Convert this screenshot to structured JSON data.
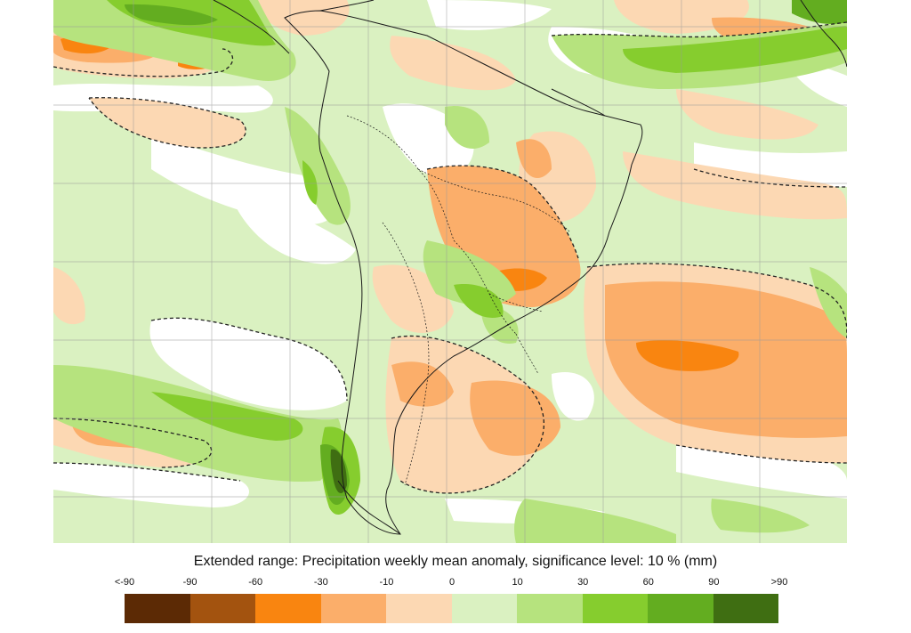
{
  "caption": "Extended range: Precipitation weekly mean anomaly, significance level: 10 % (mm)",
  "legend": {
    "labels": [
      "<-90",
      "-90",
      "-60",
      "-30",
      "-10",
      "0",
      "10",
      "30",
      "60",
      "90",
      ">90"
    ],
    "colors": [
      "#5c2a05",
      "#a3530f",
      "#f98510",
      "#fbae6a",
      "#fcd8b3",
      "#daf1c1",
      "#b6e37e",
      "#86cd2e",
      "#63ad20",
      "#3f6e12"
    ]
  },
  "map": {
    "region": "South America",
    "palette": {
      "background_significant": "#daf1c1",
      "not_significant": "#ffffff",
      "dry_light": "#fcd8b3",
      "dry_mid": "#fbae6a",
      "dry_strong": "#f98510",
      "wet_light": "#b6e37e",
      "wet_mid": "#86cd2e",
      "wet_strong": "#63ad20",
      "wet_extreme": "#3f6e12",
      "coast": "#1a1a1a",
      "grid": "#9a9a9a",
      "contour": "#222222"
    }
  }
}
